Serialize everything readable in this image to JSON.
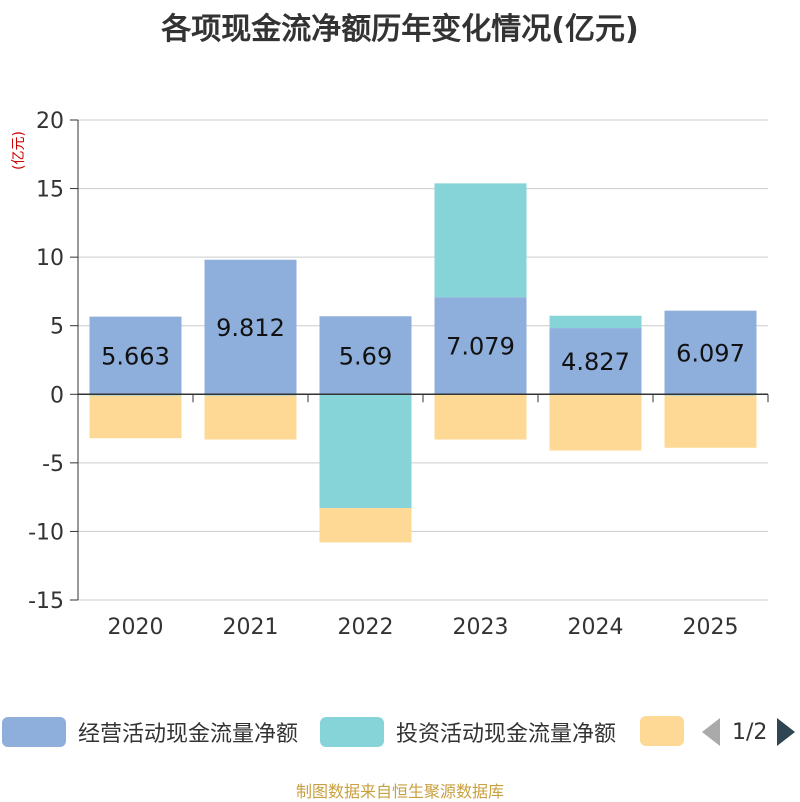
{
  "title": "各项现金流净额历年变化情况(亿元)",
  "unit_label": "(亿元)",
  "footer": "制图数据来自恒生聚源数据库",
  "legend": {
    "items": [
      {
        "name": "经营活动现金流量净额",
        "color": "#8eaedb"
      },
      {
        "name": "投资活动现金流量净额",
        "color": "#86d4d8"
      },
      {
        "name": "",
        "color": "#fed995"
      }
    ],
    "page_indicator": "1/2"
  },
  "chart_data": {
    "type": "bar",
    "stacked": true,
    "title": "各项现金流净额历年变化情况(亿元)",
    "ylabel": "(亿元)",
    "ylim": [
      -15,
      20
    ],
    "yticks": [
      -15,
      -10,
      -5,
      0,
      5,
      10,
      15,
      20
    ],
    "categories": [
      "2020",
      "2021",
      "2022",
      "2023",
      "2024",
      "2025"
    ],
    "series": [
      {
        "name": "经营活动现金流量净额",
        "color": "#8eaedb",
        "values": [
          5.663,
          9.812,
          5.69,
          7.079,
          4.827,
          6.097
        ],
        "labels": [
          "5.663",
          "9.812",
          "5.69",
          "7.079",
          "4.827",
          "6.097"
        ]
      },
      {
        "name": "投资活动现金流量净额",
        "color": "#86d4d8",
        "values": [
          -0.1,
          -0.1,
          -8.3,
          8.3,
          0.9,
          -0.1
        ]
      },
      {
        "name": "",
        "color": "#fed995",
        "values": [
          -3.1,
          -3.2,
          -2.5,
          -3.3,
          -4.1,
          -3.8
        ]
      }
    ],
    "grid": true,
    "legend_position": "bottom"
  }
}
